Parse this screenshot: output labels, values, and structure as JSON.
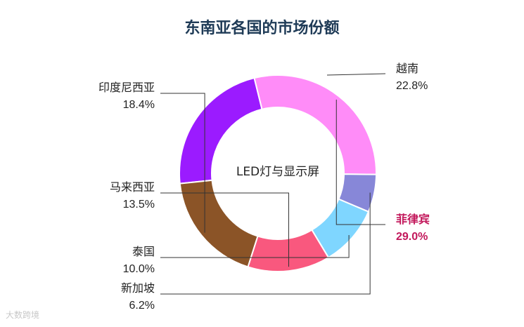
{
  "chart_data": {
    "type": "pie",
    "title": "东南亚各国的市场份额",
    "center_label": "LED灯与显示屏",
    "slices": [
      {
        "name": "越南",
        "percent_label": "22.8%",
        "value": 22.8,
        "color": "#9b1bff",
        "highlight": false
      },
      {
        "name": "菲律宾",
        "percent_label": "29.0%",
        "value": 29.0,
        "color": "#ff8cf8",
        "highlight": true
      },
      {
        "name": "新加坡",
        "percent_label": "6.2%",
        "value": 6.2,
        "color": "#8787d8",
        "highlight": false
      },
      {
        "name": "泰国",
        "percent_label": "10.0%",
        "value": 10.0,
        "color": "#7fd6ff",
        "highlight": false
      },
      {
        "name": "马来西亚",
        "percent_label": "13.5%",
        "value": 13.5,
        "color": "#f9587e",
        "highlight": false
      },
      {
        "name": "印度尼西亚",
        "percent_label": "18.4%",
        "value": 18.4,
        "color": "#8b5427",
        "highlight": false
      }
    ],
    "label_color": "#222222",
    "highlight_color": "#c2185b"
  },
  "watermark": "大数跨境"
}
